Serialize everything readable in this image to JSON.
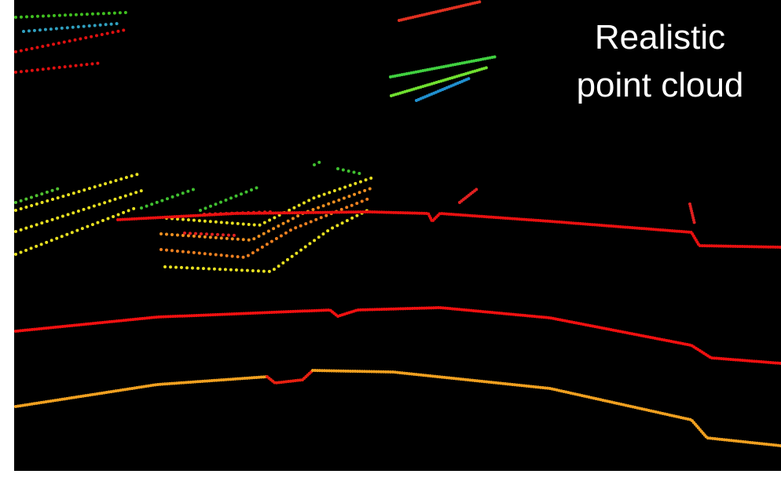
{
  "caption": {
    "lines": [
      "Realistic",
      "point cloud"
    ]
  }
}
